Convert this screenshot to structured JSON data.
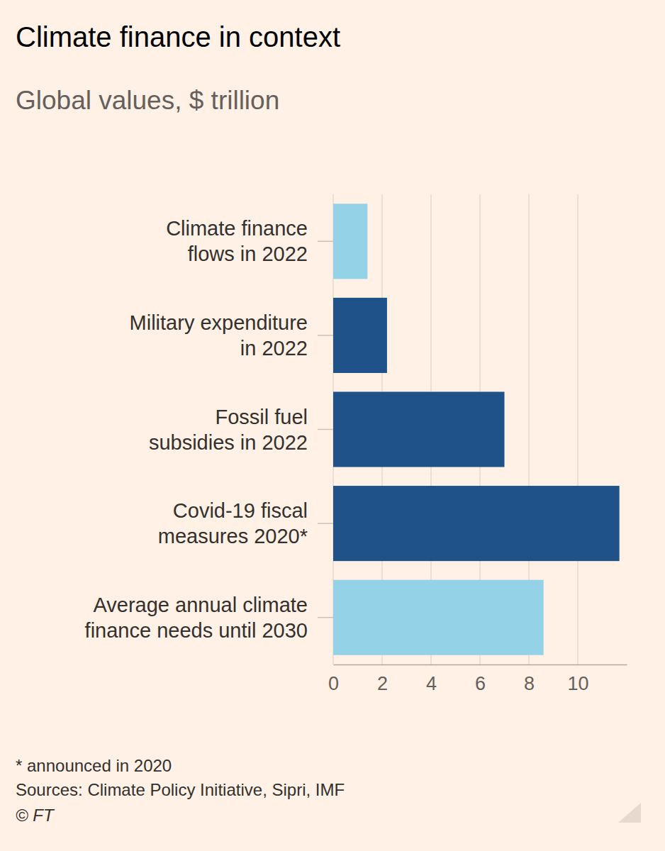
{
  "chart_data": {
    "type": "bar",
    "orientation": "horizontal",
    "title": "Climate finance in context",
    "subtitle": "Global values, $ trillion",
    "categories": [
      "Climate finance\nflows in 2022",
      "Military expenditure\nin 2022",
      "Fossil fuel\nsubsidies in 2022",
      "Covid-19 fiscal\nmeasures 2020*",
      "Average annual climate\nfinance needs until 2030"
    ],
    "values": [
      1.4,
      2.2,
      7.0,
      11.7,
      8.6
    ],
    "colors": [
      "#93d2e7",
      "#1f5289",
      "#1f5289",
      "#1f5289",
      "#93d2e7"
    ],
    "xlim": [
      0,
      12
    ],
    "xticks": [
      0,
      2,
      4,
      6,
      8,
      10
    ],
    "grid": true,
    "footnote": "* announced in 2020",
    "source": "Sources: Climate Policy Initiative, Sipri, IMF",
    "copyright": "© FT"
  }
}
